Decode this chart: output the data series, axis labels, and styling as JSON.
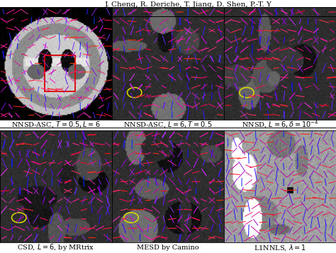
{
  "title_text": "J. Cheng, R. Deriche, T. Jiang, D. Shen, P.-T. Y",
  "panel_labels": [
    "NNSD-ASC, $T = 0.5, L = 6$",
    "NNSD-ASC, $L = 6, T = 0.5$",
    "NNSD, $L = 6, \\delta = 10^{-4}$",
    "CSD, $L = 6$, by MRtrix",
    "MESD by Camino",
    "L1NNLS, $\\lambda = 1$"
  ],
  "bg_color": "#ffffff",
  "header_color": "#000000",
  "label_fontsize": 7.0,
  "header_fontsize": 7.5,
  "panel_bg_dark": "#222222",
  "panel_bg_light": "#f0f0f0"
}
